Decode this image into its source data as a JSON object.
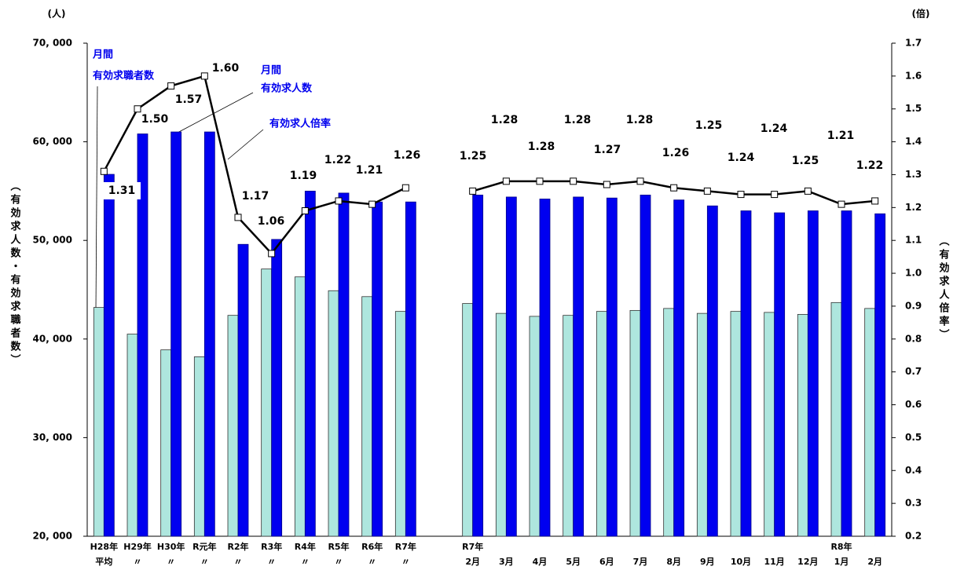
{
  "chart_data": {
    "type": "bar",
    "left_unit": "(人)",
    "right_unit": "(倍)",
    "ylabel": "（有効求人数・有効求職者数）",
    "y2label": "（有効求人倍率）",
    "categories": [
      [
        "H28年",
        "平均"
      ],
      [
        "H29年",
        "〃"
      ],
      [
        "H30年",
        "〃"
      ],
      [
        "R元年",
        "〃"
      ],
      [
        "R2年",
        "〃"
      ],
      [
        "R3年",
        "〃"
      ],
      [
        "R4年",
        "〃"
      ],
      [
        "R5年",
        "〃"
      ],
      [
        "R6年",
        "〃"
      ],
      [
        "R7年",
        "〃"
      ],
      null,
      [
        "R7年",
        "2月"
      ],
      [
        "3月"
      ],
      [
        "4月"
      ],
      [
        "5月"
      ],
      [
        "6月"
      ],
      [
        "7月"
      ],
      [
        "8月"
      ],
      [
        "9月"
      ],
      [
        "10月"
      ],
      [
        "11月"
      ],
      [
        "12月"
      ],
      [
        "R8年",
        "1月"
      ],
      [
        "2月"
      ]
    ],
    "series": [
      {
        "name": [
          "月間",
          "有効求職者数"
        ],
        "type": "bar",
        "color": "#aee6de",
        "values": [
          43200,
          40500,
          38900,
          38200,
          42400,
          47100,
          46300,
          44900,
          44300,
          42800,
          null,
          43600,
          42600,
          42300,
          42400,
          42800,
          42900,
          43100,
          42600,
          42800,
          42700,
          42500,
          43700,
          43100
        ]
      },
      {
        "name": [
          "月間",
          "有効求人数"
        ],
        "type": "bar",
        "color": "#0000f0",
        "values": [
          56700,
          60800,
          61000,
          61000,
          49600,
          50100,
          55000,
          54800,
          53900,
          53900,
          null,
          54600,
          54400,
          54200,
          54400,
          54300,
          54600,
          54100,
          53500,
          53000,
          52800,
          53000,
          53000,
          52700
        ]
      },
      {
        "name": [
          "有効求人倍率"
        ],
        "type": "line",
        "axis": "y2",
        "color": "#000000",
        "values": [
          1.31,
          1.5,
          1.57,
          1.6,
          1.17,
          1.06,
          1.19,
          1.22,
          1.21,
          1.26,
          null,
          1.25,
          1.28,
          1.28,
          1.28,
          1.27,
          1.28,
          1.26,
          1.25,
          1.24,
          1.24,
          1.25,
          1.21,
          1.22
        ],
        "value_labels": [
          "1.31",
          "1.50",
          "1.57",
          "1.60",
          "1.17",
          "1.06",
          "1.19",
          "1.22",
          "1.21",
          "1.26",
          null,
          "1.25",
          "1.28",
          "1.28",
          "1.28",
          "1.27",
          "1.28",
          "1.26",
          "1.25",
          "1.24",
          "1.24",
          "1.25",
          "1.21",
          "1.22"
        ]
      }
    ],
    "ylim": [
      20000,
      70000
    ],
    "yticks": [
      {
        "value": 20000,
        "label": "20, 000"
      },
      {
        "value": 30000,
        "label": "30, 000"
      },
      {
        "value": 40000,
        "label": "40, 000"
      },
      {
        "value": 50000,
        "label": "50, 000"
      },
      {
        "value": 60000,
        "label": "60, 000"
      },
      {
        "value": 70000,
        "label": "70, 000"
      }
    ],
    "y2lim": [
      0.2,
      1.7
    ],
    "y2ticks": [
      0.2,
      0.3,
      0.4,
      0.5,
      0.6,
      0.7,
      0.8,
      0.9,
      {
        "value": 1,
        "label": "1.0"
      },
      1.1,
      1.2,
      1.3,
      1.4,
      1.5,
      1.6,
      1.7
    ],
    "grid": false
  }
}
